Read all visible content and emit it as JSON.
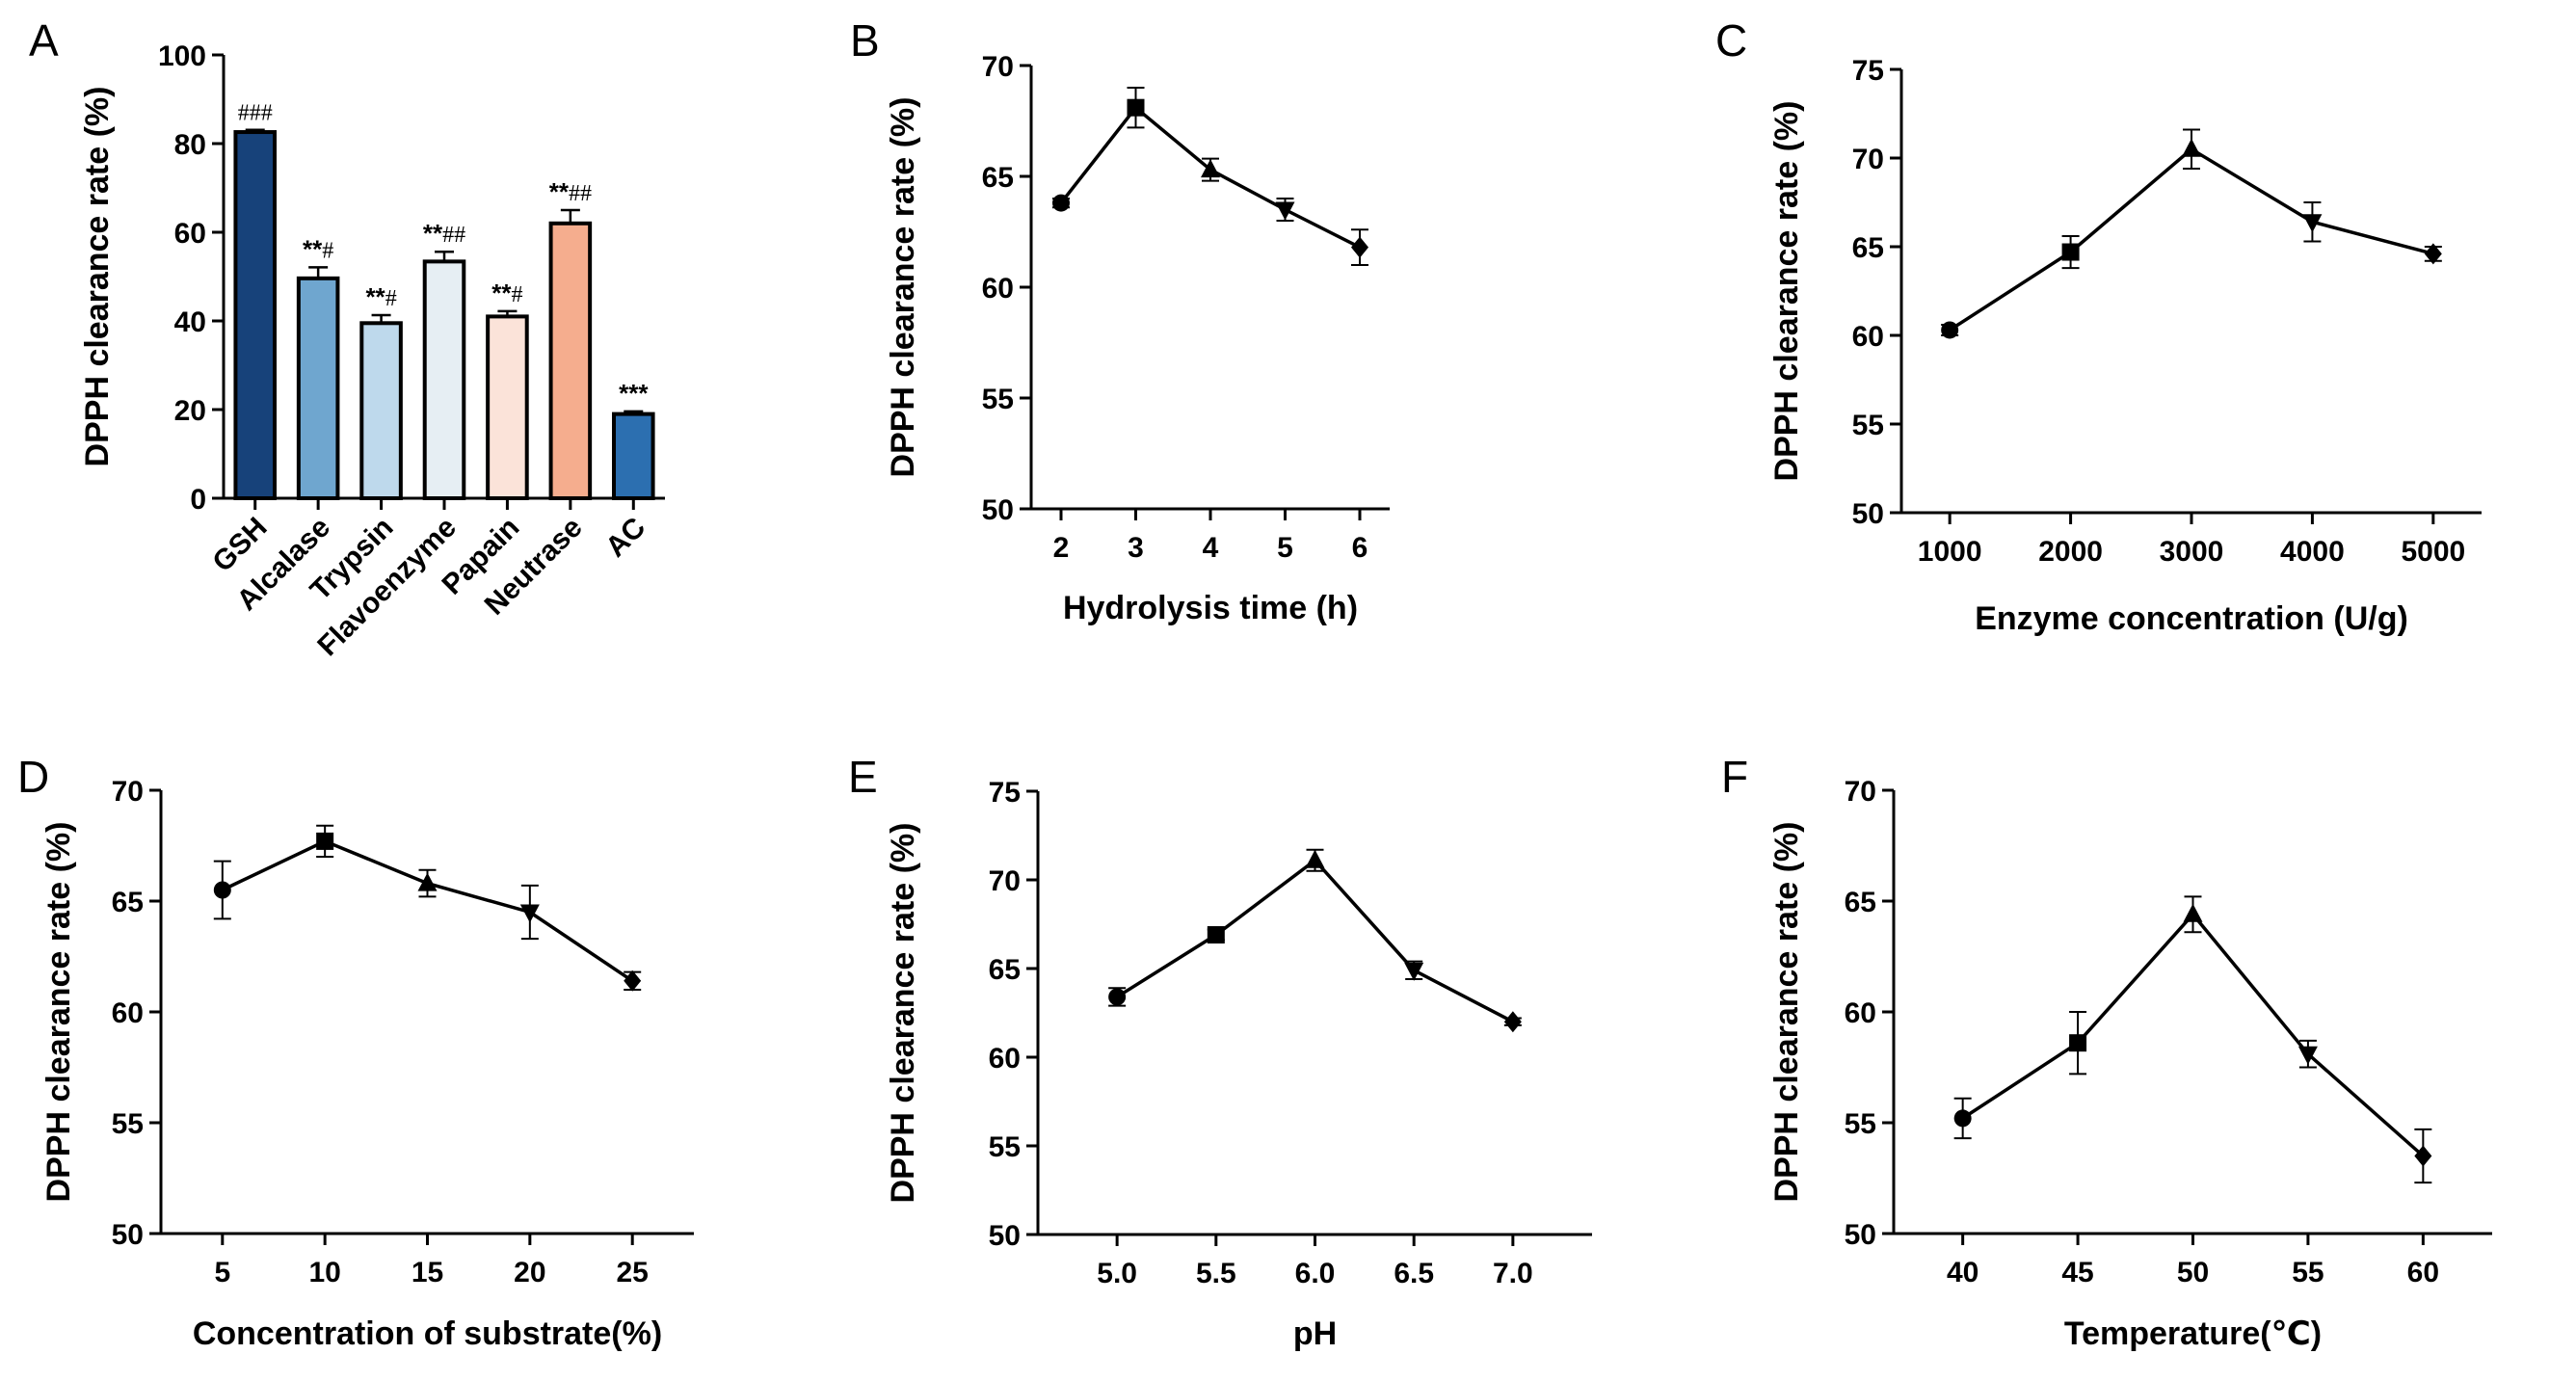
{
  "chart_data": [
    {
      "panel": "A",
      "type": "bar",
      "ylabel": "DPPH clearance rate (%)",
      "xlabel": "",
      "ylim": [
        0,
        100
      ],
      "yticks": [
        0,
        20,
        40,
        60,
        80,
        100
      ],
      "categories": [
        "GSH",
        "Alcalase",
        "Trypsin",
        "Flavoenzyme",
        "Papain",
        "Neutrase",
        "AC"
      ],
      "values": [
        82.6,
        49.6,
        39.5,
        53.4,
        41.0,
        62.0,
        19.0
      ],
      "errors": [
        0.5,
        2.5,
        1.8,
        2.2,
        1.2,
        3.0,
        0.6
      ],
      "colors": [
        "#17427a",
        "#6fa6cf",
        "#bed9ec",
        "#e6eef3",
        "#fbe3d9",
        "#f5ad8e",
        "#2c6fb0"
      ],
      "significance": [
        {
          "stars": "",
          "hashes": "###"
        },
        {
          "stars": "**",
          "hashes": "#"
        },
        {
          "stars": "**",
          "hashes": "#"
        },
        {
          "stars": "**",
          "hashes": "##"
        },
        {
          "stars": "**",
          "hashes": "#"
        },
        {
          "stars": "**",
          "hashes": "##"
        },
        {
          "stars": "***",
          "hashes": ""
        }
      ],
      "grid": false
    },
    {
      "panel": "B",
      "type": "line",
      "xlabel": "Hydrolysis time (h)",
      "ylabel": "DPPH clearance rate (%)",
      "ylim": [
        50,
        70
      ],
      "yticks": [
        50,
        55,
        60,
        65,
        70
      ],
      "xlim": [
        1.6,
        6.4
      ],
      "xticks": [
        2,
        3,
        4,
        5,
        6
      ],
      "xtick_labels": [
        "2",
        "3",
        "4",
        "5",
        "6"
      ],
      "x": [
        2,
        3,
        4,
        5,
        6
      ],
      "y": [
        63.8,
        68.1,
        65.3,
        63.5,
        61.8
      ],
      "errors": [
        0.2,
        0.9,
        0.5,
        0.5,
        0.8
      ],
      "markers": [
        "circle",
        "square",
        "triangle-up",
        "triangle-down",
        "diamond"
      ],
      "grid": false
    },
    {
      "panel": "C",
      "type": "line",
      "xlabel": "Enzyme concentration (U/g)",
      "ylabel": "DPPH clearance rate (%)",
      "ylim": [
        50,
        75
      ],
      "yticks": [
        50,
        55,
        60,
        65,
        70,
        75
      ],
      "xlim": [
        600,
        5400
      ],
      "xticks": [
        1000,
        2000,
        3000,
        4000,
        5000
      ],
      "xtick_labels": [
        "1000",
        "2000",
        "3000",
        "4000",
        "5000"
      ],
      "x": [
        1000,
        2000,
        3000,
        4000,
        5000
      ],
      "y": [
        60.3,
        64.7,
        70.5,
        66.4,
        64.6
      ],
      "errors": [
        0.3,
        0.9,
        1.1,
        1.1,
        0.4
      ],
      "markers": [
        "circle",
        "square",
        "triangle-up",
        "triangle-down",
        "diamond"
      ],
      "grid": false
    },
    {
      "panel": "D",
      "type": "line",
      "xlabel": "Concentration of substrate(%)",
      "ylabel": "DPPH clearance rate (%)",
      "ylim": [
        50,
        70
      ],
      "yticks": [
        50,
        55,
        60,
        65,
        70
      ],
      "xlim": [
        2,
        28
      ],
      "xticks": [
        5,
        10,
        15,
        20,
        25
      ],
      "xtick_labels": [
        "5",
        "10",
        "15",
        "20",
        "25"
      ],
      "x": [
        5,
        10,
        15,
        20,
        25
      ],
      "y": [
        65.5,
        67.7,
        65.8,
        64.5,
        61.4
      ],
      "errors": [
        1.3,
        0.7,
        0.6,
        1.2,
        0.4
      ],
      "markers": [
        "circle",
        "square",
        "triangle-up",
        "triangle-down",
        "diamond"
      ],
      "grid": false
    },
    {
      "panel": "E",
      "type": "line",
      "xlabel": "pH",
      "ylabel": "DPPH clearance rate (%)",
      "ylim": [
        50,
        75
      ],
      "yticks": [
        50,
        55,
        60,
        65,
        70,
        75
      ],
      "xlim": [
        4.6,
        7.4
      ],
      "xticks": [
        5.0,
        5.5,
        6.0,
        6.5,
        7.0
      ],
      "xtick_labels": [
        "5.0",
        "5.5",
        "6.0",
        "6.5",
        "7.0"
      ],
      "x": [
        5.0,
        5.5,
        6.0,
        6.5,
        7.0
      ],
      "y": [
        63.4,
        66.9,
        71.1,
        64.9,
        62.0
      ],
      "errors": [
        0.5,
        0.3,
        0.6,
        0.5,
        0.2
      ],
      "markers": [
        "circle",
        "square",
        "triangle-up",
        "triangle-down",
        "diamond"
      ],
      "grid": false
    },
    {
      "panel": "F",
      "type": "line",
      "xlabel": "Temperature(℃)",
      "ylabel": "DPPH clearance rate (%)",
      "ylim": [
        50,
        70
      ],
      "yticks": [
        50,
        55,
        60,
        65,
        70
      ],
      "xlim": [
        37,
        63
      ],
      "xticks": [
        40,
        45,
        50,
        55,
        60
      ],
      "xtick_labels": [
        "40",
        "45",
        "50",
        "55",
        "60"
      ],
      "x": [
        40,
        45,
        50,
        55,
        60
      ],
      "y": [
        55.2,
        58.6,
        64.4,
        58.1,
        53.5
      ],
      "errors": [
        0.9,
        1.4,
        0.8,
        0.6,
        1.2
      ],
      "markers": [
        "circle",
        "square",
        "triangle-up",
        "triangle-down",
        "diamond"
      ],
      "grid": false
    }
  ]
}
